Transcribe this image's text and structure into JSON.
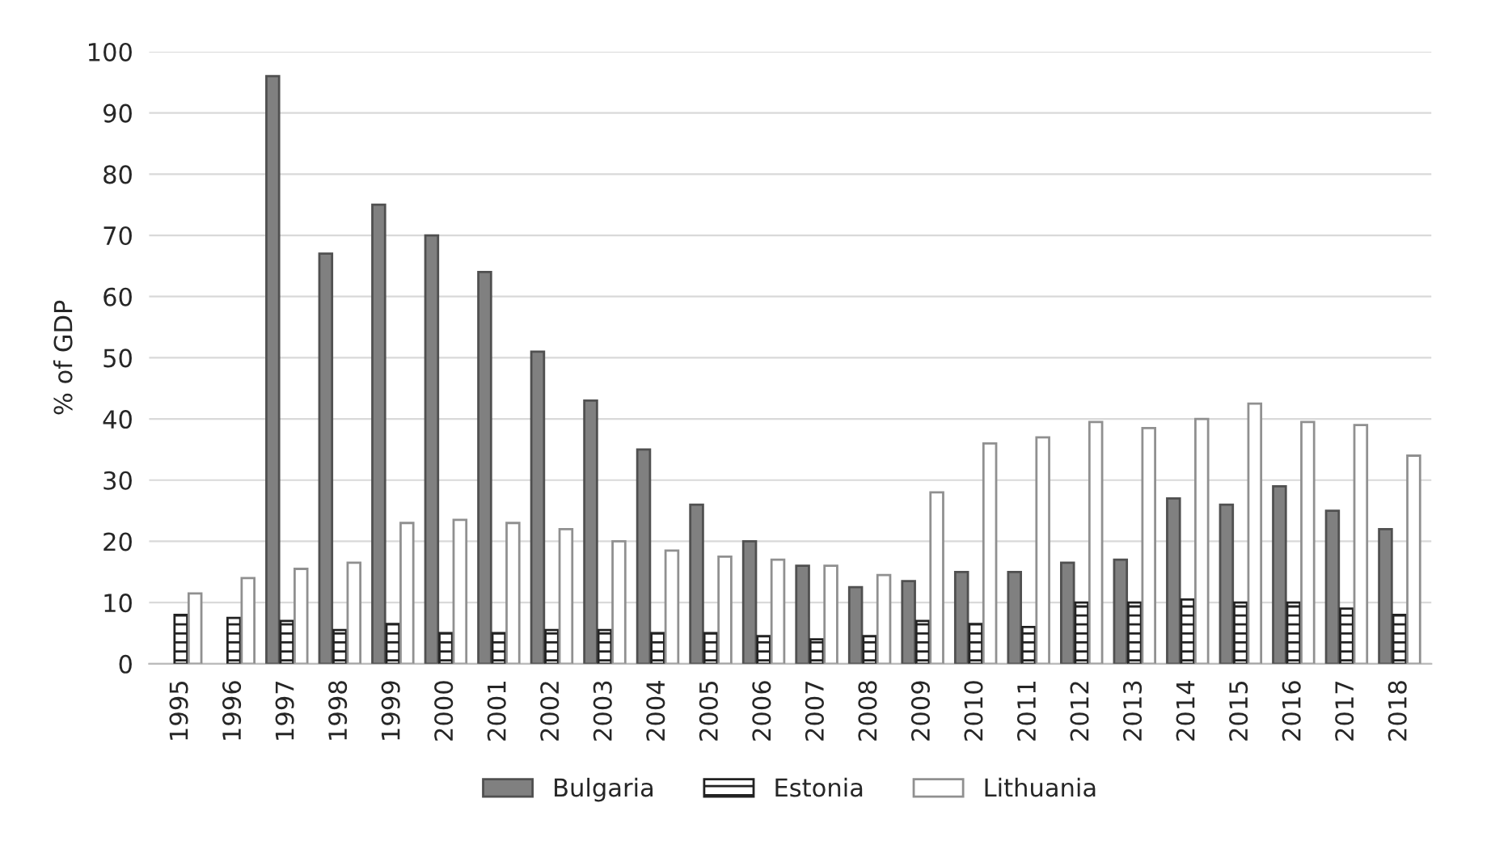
{
  "chart_data": {
    "type": "bar",
    "ylabel": "% of GDP",
    "categories": [
      "1995",
      "1996",
      "1997",
      "1998",
      "1999",
      "2000",
      "2001",
      "2002",
      "2003",
      "2004",
      "2005",
      "2006",
      "2007",
      "2008",
      "2009",
      "2010",
      "2011",
      "2012",
      "2013",
      "2014",
      "2015",
      "2016",
      "2017",
      "2018"
    ],
    "series": [
      {
        "name": "Bulgaria",
        "color": "#808080",
        "values": [
          null,
          null,
          96,
          67,
          75,
          70,
          64,
          51,
          43,
          35,
          26,
          20,
          16,
          12.5,
          13.5,
          15,
          15,
          16.5,
          17,
          27,
          26,
          29,
          25,
          22
        ]
      },
      {
        "name": "Estonia",
        "color": "#222222",
        "values": [
          8,
          7.5,
          7,
          5.5,
          6.5,
          5,
          5,
          5.5,
          5.5,
          5,
          5,
          4.5,
          4,
          4.5,
          7,
          6.5,
          6,
          10,
          10,
          10.5,
          10,
          10,
          9,
          8
        ]
      },
      {
        "name": "Lithuania",
        "color": "#ffffff",
        "values": [
          11.5,
          14,
          15.5,
          16.5,
          23,
          23.5,
          23,
          22,
          20,
          18.5,
          17.5,
          17,
          16,
          14.5,
          28,
          36,
          37,
          39.5,
          38.5,
          40,
          42.5,
          39.5,
          39,
          34
        ]
      }
    ],
    "ylim": [
      0,
      100
    ],
    "yticks": [
      0,
      10,
      20,
      30,
      40,
      50,
      60,
      70,
      80,
      90,
      100
    ],
    "grid": "y",
    "legend": "bottom"
  }
}
